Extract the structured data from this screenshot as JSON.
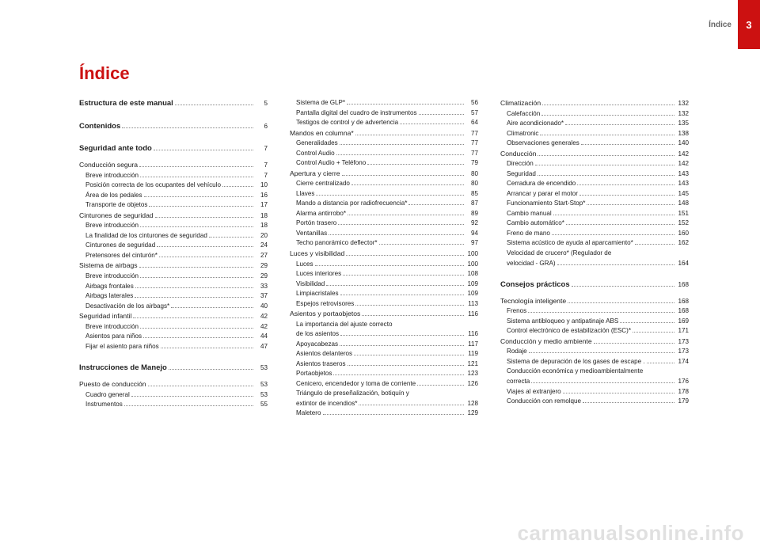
{
  "header": {
    "label": "Índice",
    "page": "3"
  },
  "title": "Índice",
  "watermark": "carmanualsonline.info",
  "columns": [
    [
      {
        "t": "bold",
        "label": "Estructura de este manual",
        "page": "5"
      },
      {
        "t": "sp-lg"
      },
      {
        "t": "bold",
        "label": "Contenidos",
        "page": "6"
      },
      {
        "t": "sp-lg"
      },
      {
        "t": "bold",
        "label": "Seguridad ante todo",
        "page": "7"
      },
      {
        "t": "sp-sm"
      },
      {
        "t": "sect",
        "label": "Conducción segura",
        "page": "7"
      },
      {
        "t": "sub",
        "label": "Breve introducción",
        "page": "7"
      },
      {
        "t": "sub",
        "label": "Posición correcta de los ocupantes del vehículo",
        "page": "10"
      },
      {
        "t": "sub",
        "label": "Área de los pedales",
        "page": "16"
      },
      {
        "t": "sub",
        "label": "Transporte de objetos",
        "page": "17"
      },
      {
        "t": "sect",
        "label": "Cinturones de seguridad",
        "page": "18"
      },
      {
        "t": "sub",
        "label": "Breve introducción",
        "page": "18"
      },
      {
        "t": "sub",
        "label": "La finalidad de los cinturones de seguridad",
        "page": "20"
      },
      {
        "t": "sub",
        "label": "Cinturones de seguridad",
        "page": "24"
      },
      {
        "t": "sub",
        "label": "Pretensores del cinturón*",
        "page": "27"
      },
      {
        "t": "sect",
        "label": "Sistema de airbags",
        "page": "29"
      },
      {
        "t": "sub",
        "label": "Breve introducción",
        "page": "29"
      },
      {
        "t": "sub",
        "label": "Airbags frontales",
        "page": "33"
      },
      {
        "t": "sub",
        "label": "Airbags laterales",
        "page": "37"
      },
      {
        "t": "sub",
        "label": "Desactivación de los airbags*",
        "page": "40"
      },
      {
        "t": "sect",
        "label": "Seguridad infantil",
        "page": "42"
      },
      {
        "t": "sub",
        "label": "Breve introducción",
        "page": "42"
      },
      {
        "t": "sub",
        "label": "Asientos para niños",
        "page": "44"
      },
      {
        "t": "sub",
        "label": "Fijar el asiento para niños",
        "page": "47"
      },
      {
        "t": "sp-lg"
      },
      {
        "t": "bold",
        "label": "Instrucciones de Manejo",
        "page": "53"
      },
      {
        "t": "sp-sm"
      },
      {
        "t": "sect",
        "label": "Puesto de conducción",
        "page": "53"
      },
      {
        "t": "sub",
        "label": "Cuadro general",
        "page": "53"
      },
      {
        "t": "sub",
        "label": "Instrumentos",
        "page": "55"
      }
    ],
    [
      {
        "t": "sub",
        "label": "Sistema de GLP*",
        "page": "56"
      },
      {
        "t": "sub",
        "label": "Pantalla digital del cuadro de instrumentos",
        "page": "57"
      },
      {
        "t": "sub",
        "label": "Testigos de control y de advertencia",
        "page": "64"
      },
      {
        "t": "sect",
        "label": "Mandos en columna*",
        "page": "77"
      },
      {
        "t": "sub",
        "label": "Generalidades",
        "page": "77"
      },
      {
        "t": "sub",
        "label": "Control Audio",
        "page": "77"
      },
      {
        "t": "sub",
        "label": "Control Audio + Teléfono",
        "page": "79"
      },
      {
        "t": "sect",
        "label": "Apertura y cierre",
        "page": "80"
      },
      {
        "t": "sub",
        "label": "Cierre centralizado",
        "page": "80"
      },
      {
        "t": "sub",
        "label": "Llaves",
        "page": "85"
      },
      {
        "t": "sub",
        "label": "Mando a distancia por radiofrecuencia*",
        "page": "87"
      },
      {
        "t": "sub",
        "label": "Alarma antirrobo*",
        "page": "89"
      },
      {
        "t": "sub",
        "label": "Portón trasero",
        "page": "92"
      },
      {
        "t": "sub",
        "label": "Ventanillas",
        "page": "94"
      },
      {
        "t": "sub",
        "label": "Techo panorámico deflector*",
        "page": "97"
      },
      {
        "t": "sect",
        "label": "Luces y visibilidad",
        "page": "100"
      },
      {
        "t": "sub",
        "label": "Luces",
        "page": "100"
      },
      {
        "t": "sub",
        "label": "Luces interiores",
        "page": "108"
      },
      {
        "t": "sub",
        "label": "Visibilidad",
        "page": "109"
      },
      {
        "t": "sub",
        "label": "Limpiacristales",
        "page": "109"
      },
      {
        "t": "sub",
        "label": "Espejos retrovisores",
        "page": "113"
      },
      {
        "t": "sect",
        "label": "Asientos y portaobjetos",
        "page": "116"
      },
      {
        "t": "sub",
        "label": "La importancia del ajuste correcto de los asientos",
        "page": "116",
        "wrap": true
      },
      {
        "t": "sub",
        "label": "Apoyacabezas",
        "page": "117"
      },
      {
        "t": "sub",
        "label": "Asientos delanteros",
        "page": "119"
      },
      {
        "t": "sub",
        "label": "Asientos traseros",
        "page": "121"
      },
      {
        "t": "sub",
        "label": "Portaobjetos",
        "page": "123"
      },
      {
        "t": "sub",
        "label": "Cenicero, encendedor y toma de corriente",
        "page": "126"
      },
      {
        "t": "sub",
        "label": "Triángulo de preseñalización, botiquín y extintor de incendios*",
        "page": "128",
        "wrap": true
      },
      {
        "t": "sub",
        "label": "Maletero",
        "page": "129"
      }
    ],
    [
      {
        "t": "sect",
        "label": "Climatización",
        "page": "132"
      },
      {
        "t": "sub",
        "label": "Calefacción",
        "page": "132"
      },
      {
        "t": "sub",
        "label": "Aire acondicionado*",
        "page": "135"
      },
      {
        "t": "sub",
        "label": "Climatronic",
        "page": "138"
      },
      {
        "t": "sub",
        "label": "Observaciones generales",
        "page": "140"
      },
      {
        "t": "sect",
        "label": "Conducción",
        "page": "142"
      },
      {
        "t": "sub",
        "label": "Dirección",
        "page": "142"
      },
      {
        "t": "sub",
        "label": "Seguridad",
        "page": "143"
      },
      {
        "t": "sub",
        "label": "Cerradura de encendido",
        "page": "143"
      },
      {
        "t": "sub",
        "label": "Arrancar y parar el motor",
        "page": "145"
      },
      {
        "t": "sub",
        "label": "Funcionamiento Start-Stop*",
        "page": "148"
      },
      {
        "t": "sub",
        "label": "Cambio manual",
        "page": "151"
      },
      {
        "t": "sub",
        "label": "Cambio automático*",
        "page": "152"
      },
      {
        "t": "sub",
        "label": "Freno de mano",
        "page": "160"
      },
      {
        "t": "sub",
        "label": "Sistema acústico de ayuda al aparcamiento*",
        "page": "162"
      },
      {
        "t": "sub",
        "label": "Velocidad de crucero* (Regulador de velocidad - GRA)",
        "page": "164",
        "wrap": true
      },
      {
        "t": "sp-lg"
      },
      {
        "t": "bold",
        "label": "Consejos prácticos",
        "page": "168"
      },
      {
        "t": "sp-sm"
      },
      {
        "t": "sect",
        "label": "Tecnología inteligente",
        "page": "168"
      },
      {
        "t": "sub",
        "label": "Frenos",
        "page": "168"
      },
      {
        "t": "sub",
        "label": "Sistema antibloqueo y antipatinaje ABS",
        "page": "169"
      },
      {
        "t": "sub",
        "label": "Control electrónico de estabilización (ESC)*",
        "page": "171"
      },
      {
        "t": "sect",
        "label": "Conducción y medio ambiente",
        "page": "173"
      },
      {
        "t": "sub",
        "label": "Rodaje",
        "page": "173"
      },
      {
        "t": "sub",
        "label": "Sistema de depuración de los gases de escape .",
        "page": "174"
      },
      {
        "t": "sub",
        "label": "Conducción económica y medioambientalmente correcta",
        "page": "176",
        "wrap": true
      },
      {
        "t": "sub",
        "label": "Viajes al extranjero",
        "page": "178"
      },
      {
        "t": "sub",
        "label": "Conducción con remolque",
        "page": "179"
      }
    ]
  ]
}
